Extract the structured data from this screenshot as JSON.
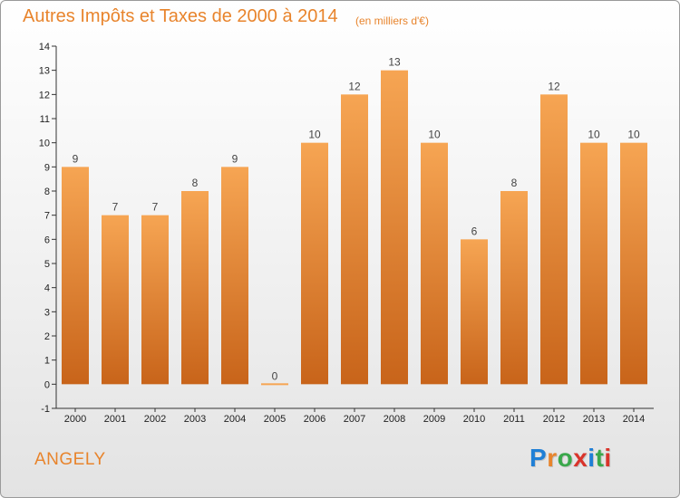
{
  "header": {
    "title": "Autres Impôts et Taxes de 2000 à 2014",
    "subtitle": "(en milliers d'€)"
  },
  "commune": "ANGELY",
  "logo": {
    "text": "Proxiti",
    "colors": [
      "#1f7fd6",
      "#e8842c",
      "#3aa84b",
      "#d9342b",
      "#1f7fd6",
      "#3aa84b",
      "#d9342b"
    ]
  },
  "colors": {
    "bar_light": "#f6a553",
    "bar_dark": "#c8641a",
    "accent": "#e8842c"
  },
  "chart_data": {
    "type": "bar",
    "categories": [
      "2000",
      "2001",
      "2002",
      "2003",
      "2004",
      "2005",
      "2006",
      "2007",
      "2008",
      "2009",
      "2010",
      "2011",
      "2012",
      "2013",
      "2014"
    ],
    "values": [
      9,
      7,
      7,
      8,
      9,
      0,
      10,
      12,
      13,
      10,
      6,
      8,
      12,
      10,
      10
    ],
    "value_labels": [
      "9",
      "7",
      "7",
      "8",
      "9",
      "0",
      "10",
      "12",
      "13",
      "10",
      "6",
      "8",
      "12",
      "10",
      "10"
    ],
    "y_ticks": [
      "-1",
      "0",
      "1",
      "2",
      "3",
      "4",
      "5",
      "6",
      "7",
      "8",
      "9",
      "10",
      "11",
      "12",
      "13",
      "14"
    ],
    "ylim": [
      -1,
      14
    ],
    "grid": false,
    "xlabel": "",
    "ylabel": ""
  }
}
